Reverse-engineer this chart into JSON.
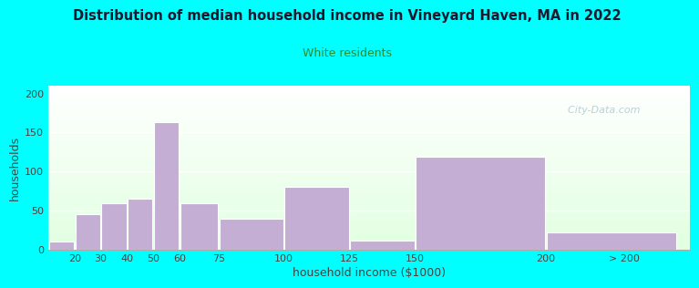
{
  "title": "Distribution of median household income in Vineyard Haven, MA in 2022",
  "subtitle": "White residents",
  "xlabel": "household income ($1000)",
  "ylabel": "households",
  "background_outer": "#00FFFF",
  "bar_color": "#c4aed4",
  "bar_edge_color": "#ffffff",
  "title_color": "#1a1a2e",
  "subtitle_color": "#2e8b2e",
  "axis_label_color": "#444444",
  "tick_color": "#444444",
  "values": [
    10,
    45,
    60,
    65,
    163,
    60,
    40,
    80,
    12,
    119,
    22
  ],
  "bar_lefts": [
    10,
    20,
    30,
    40,
    50,
    60,
    75,
    100,
    125,
    150,
    200
  ],
  "bar_widths": [
    10,
    10,
    10,
    10,
    10,
    15,
    25,
    25,
    25,
    50,
    50
  ],
  "xlim": [
    10,
    255
  ],
  "ylim": [
    0,
    210
  ],
  "yticks": [
    0,
    50,
    100,
    150,
    200
  ],
  "xtick_positions": [
    20,
    30,
    40,
    50,
    60,
    75,
    100,
    125,
    150,
    200,
    230
  ],
  "xtick_labels": [
    "20",
    "30",
    "40",
    "50",
    "60",
    "75",
    "100",
    "125",
    "150",
    "200",
    "> 200"
  ],
  "watermark": "  City-Data.com",
  "grid_color": "#dddddd"
}
